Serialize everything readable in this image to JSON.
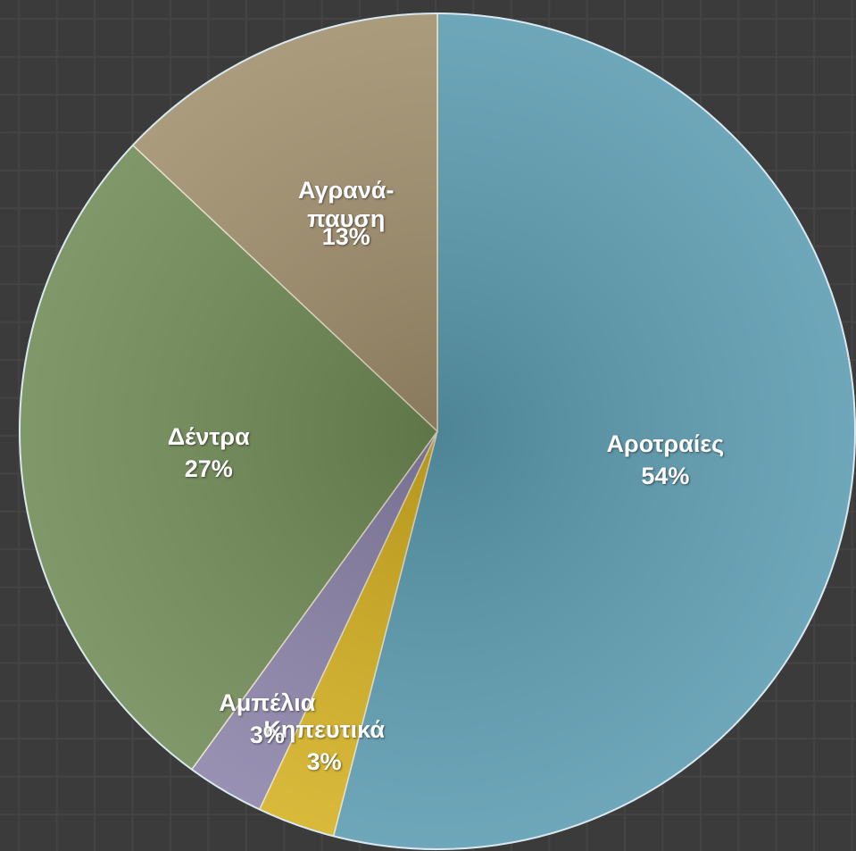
{
  "chart_data": {
    "type": "pie",
    "categories": [
      "Αροτραίες",
      "Κηπευτικά",
      "Αμπέλια",
      "Δέντρα",
      "Αγρανά-\nπαυση"
    ],
    "values": [
      54,
      3,
      3,
      27,
      13
    ],
    "value_labels": [
      "54%",
      "3%",
      "3%",
      "27%",
      "13%"
    ],
    "colors": [
      "#5b9bb0",
      "#d4b020",
      "#8a82a8",
      "#6f8a55",
      "#a08e6c"
    ]
  }
}
